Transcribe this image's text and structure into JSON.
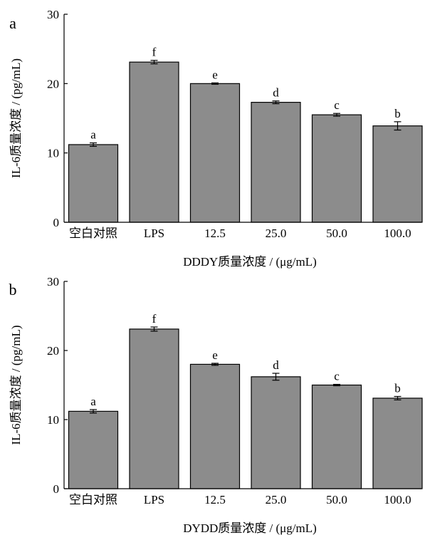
{
  "chart_data": [
    {
      "type": "bar",
      "panel_label": "a",
      "categories": [
        "空白对照",
        "LPS",
        "12.5",
        "25.0",
        "50.0",
        "100.0"
      ],
      "values": [
        11.2,
        23.1,
        20.0,
        17.3,
        15.5,
        13.9
      ],
      "errors": [
        0.25,
        0.25,
        0.1,
        0.2,
        0.2,
        0.6
      ],
      "significance": [
        "a",
        "f",
        "e",
        "d",
        "c",
        "b"
      ],
      "xlabel": "DDDY质量浓度 / (μg/mL)",
      "ylabel": "IL-6质量浓度 / (pg/mL)",
      "ylim": [
        0,
        30
      ],
      "yticks": [
        "0",
        "10",
        "20",
        "30"
      ],
      "bar_color": "#8c8c8c",
      "grid": false
    },
    {
      "type": "bar",
      "panel_label": "b",
      "categories": [
        "空白对照",
        "LPS",
        "12.5",
        "25.0",
        "50.0",
        "100.0"
      ],
      "values": [
        11.2,
        23.1,
        18.0,
        16.2,
        15.0,
        13.1
      ],
      "errors": [
        0.25,
        0.3,
        0.15,
        0.5,
        0.1,
        0.25
      ],
      "significance": [
        "a",
        "f",
        "e",
        "d",
        "c",
        "b"
      ],
      "xlabel": "DYDD质量浓度 / (μg/mL)",
      "ylabel": "IL-6质量浓度 / (pg/mL)",
      "ylim": [
        0,
        30
      ],
      "yticks": [
        "0",
        "10",
        "20",
        "30"
      ],
      "bar_color": "#8c8c8c",
      "grid": false
    }
  ]
}
